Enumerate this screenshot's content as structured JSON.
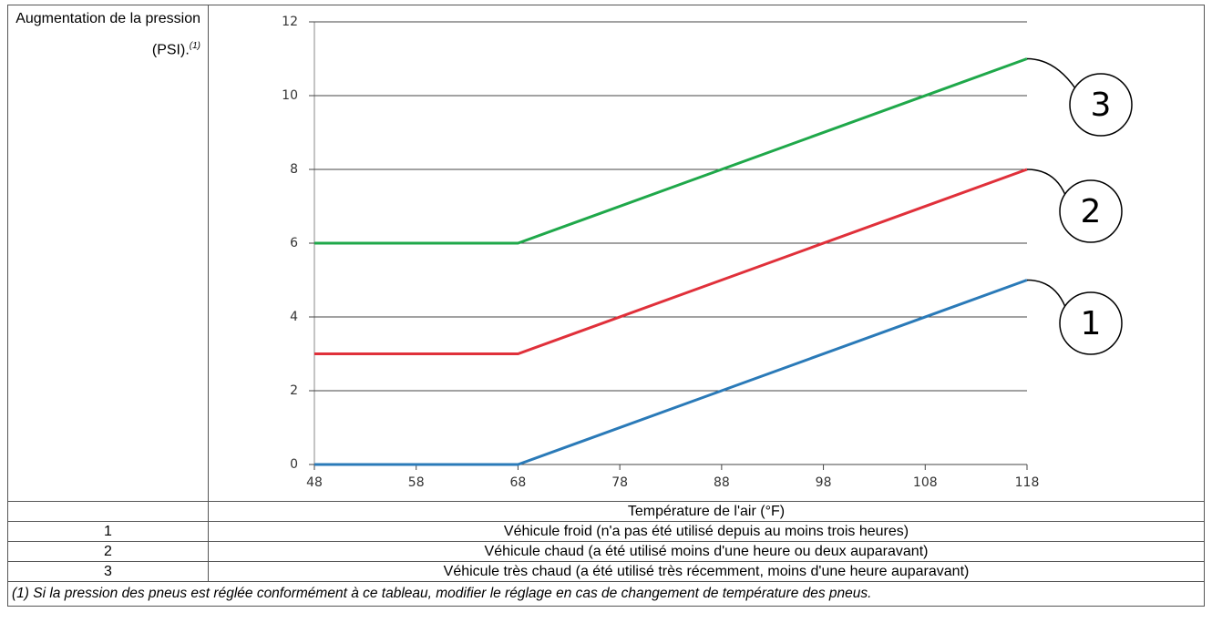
{
  "table": {
    "rows": [
      [
        "1",
        "Véhicule froid (n'a pas été utilisé depuis au moins trois heures)"
      ],
      [
        "2",
        "Véhicule chaud (a été utilisé moins d'une heure ou deux auparavant)"
      ],
      [
        "3",
        "Véhicule très chaud (a été utilisé très récemment, moins d'une heure auparavant)"
      ]
    ],
    "footnote": "(1) Si la pression des pneus est réglée conformément à ce tableau, modifier le réglage en cas de changement de température des pneus."
  },
  "chart_data": {
    "type": "line",
    "ylabel": "Augmentation de la pression (PSI).",
    "ylabel_note": "(1)",
    "xlabel": "Température de l'air (°F)",
    "x": [
      48,
      68,
      118
    ],
    "xlim": [
      48,
      118
    ],
    "xticks": [
      48,
      58,
      68,
      78,
      88,
      98,
      108,
      118
    ],
    "ylim": [
      0,
      12
    ],
    "yticks": [
      0,
      2,
      4,
      6,
      8,
      10,
      12
    ],
    "grid": true,
    "series": [
      {
        "name": "1",
        "color": "#2a7ab8",
        "values": [
          0,
          0,
          5
        ]
      },
      {
        "name": "2",
        "color": "#e0303a",
        "values": [
          3,
          3,
          8
        ]
      },
      {
        "name": "3",
        "color": "#1fa84a",
        "values": [
          6,
          6,
          11
        ]
      }
    ]
  }
}
